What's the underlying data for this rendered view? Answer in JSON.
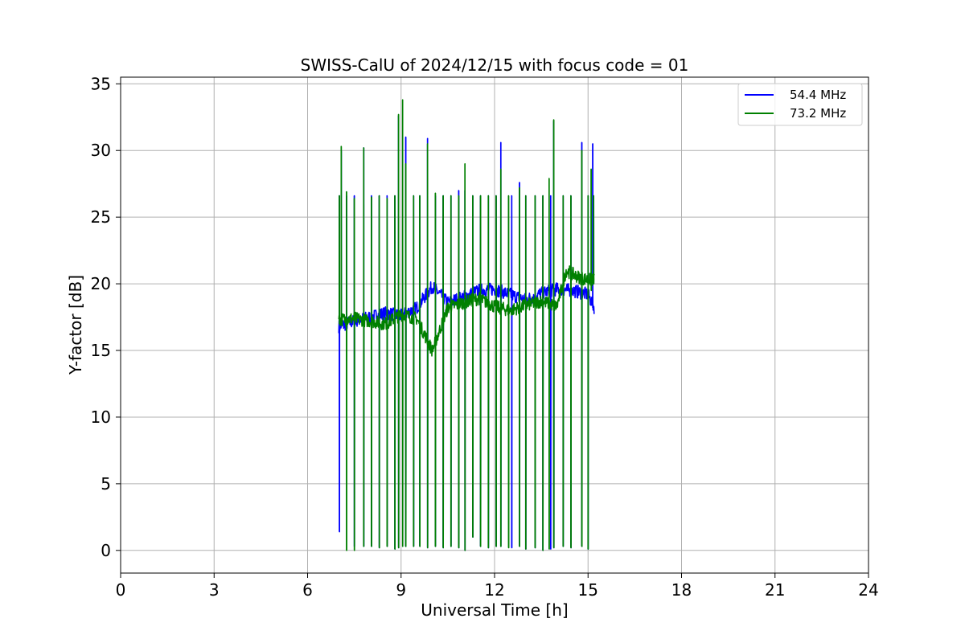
{
  "chart_data": {
    "type": "line",
    "title": "SWISS-CalU of 2024/12/15 with focus code = 01",
    "xlabel": "Universal Time [h]",
    "ylabel": "Y-factor [dB]",
    "xlim": [
      0,
      24
    ],
    "ylim": [
      -1.7,
      35.5
    ],
    "xticks": [
      0,
      3,
      6,
      9,
      12,
      15,
      18,
      21,
      24
    ],
    "yticks": [
      0,
      5,
      10,
      15,
      20,
      25,
      30,
      35
    ],
    "grid": true,
    "legend_position": "top-right",
    "series": [
      {
        "name": "54.4 MHz",
        "color": "#0000ff",
        "baseline": [
          [
            7.0,
            16.8
          ],
          [
            7.5,
            17.2
          ],
          [
            8.0,
            17.5
          ],
          [
            8.5,
            17.8
          ],
          [
            9.0,
            17.6
          ],
          [
            9.5,
            18.2
          ],
          [
            10.0,
            19.8
          ],
          [
            10.5,
            18.6
          ],
          [
            11.0,
            19.0
          ],
          [
            11.5,
            19.5
          ],
          [
            12.0,
            19.6
          ],
          [
            12.5,
            19.2
          ],
          [
            13.0,
            18.8
          ],
          [
            13.5,
            19.3
          ],
          [
            14.0,
            19.6
          ],
          [
            14.5,
            19.5
          ],
          [
            15.0,
            19.2
          ],
          [
            15.2,
            18.2
          ]
        ],
        "spikes": [
          [
            7.02,
            26.6,
            1.4
          ],
          [
            7.08,
            30.0,
            17.0
          ],
          [
            7.25,
            26.6,
            17.0
          ],
          [
            7.5,
            26.6,
            0.3
          ],
          [
            7.8,
            30.2,
            0.3
          ],
          [
            8.05,
            26.6,
            0.3
          ],
          [
            8.3,
            26.6,
            0.2
          ],
          [
            8.55,
            26.6,
            0.3
          ],
          [
            8.8,
            26.6,
            0.1
          ],
          [
            8.92,
            32.6,
            0.2
          ],
          [
            9.15,
            31.0,
            0.3
          ],
          [
            9.4,
            26.6,
            0.3
          ],
          [
            9.6,
            26.6,
            0.3
          ],
          [
            9.85,
            30.9,
            0.2
          ],
          [
            10.1,
            26.6,
            0.3
          ],
          [
            10.35,
            26.6,
            0.2
          ],
          [
            10.6,
            26.6,
            0.3
          ],
          [
            10.85,
            27.0,
            0.2
          ],
          [
            11.05,
            27.0,
            0.0
          ],
          [
            11.3,
            26.6,
            1.0
          ],
          [
            11.55,
            26.6,
            0.3
          ],
          [
            11.8,
            26.6,
            0.2
          ],
          [
            12.05,
            26.6,
            0.3
          ],
          [
            12.2,
            30.6,
            0.3
          ],
          [
            12.55,
            26.6,
            0.2
          ],
          [
            12.8,
            27.6,
            0.3
          ],
          [
            13.0,
            26.6,
            0.1
          ],
          [
            13.3,
            26.6,
            0.2
          ],
          [
            13.55,
            26.6,
            0.0
          ],
          [
            13.8,
            26.6,
            0.1
          ],
          [
            13.9,
            32.2,
            0.2
          ],
          [
            14.2,
            26.6,
            0.3
          ],
          [
            14.45,
            26.6,
            0.2
          ],
          [
            14.8,
            30.6,
            0.3
          ],
          [
            15.0,
            26.6,
            0.1
          ],
          [
            15.15,
            30.5,
            18.2
          ]
        ]
      },
      {
        "name": "73.2 MHz",
        "color": "#008000",
        "baseline": [
          [
            7.0,
            17.3
          ],
          [
            7.5,
            17.4
          ],
          [
            8.0,
            17.2
          ],
          [
            8.5,
            17.0
          ],
          [
            9.0,
            17.7
          ],
          [
            9.5,
            17.4
          ],
          [
            10.0,
            15.0
          ],
          [
            10.5,
            18.2
          ],
          [
            11.0,
            18.6
          ],
          [
            11.5,
            18.9
          ],
          [
            12.0,
            18.3
          ],
          [
            12.5,
            18.0
          ],
          [
            13.0,
            18.4
          ],
          [
            13.5,
            18.7
          ],
          [
            14.0,
            18.3
          ],
          [
            14.3,
            21.0
          ],
          [
            14.7,
            20.5
          ],
          [
            15.0,
            20.3
          ],
          [
            15.2,
            20.3
          ]
        ],
        "spikes": [
          [
            7.02,
            26.6,
            17.0
          ],
          [
            7.08,
            30.3,
            17.2
          ],
          [
            7.25,
            26.9,
            0.0
          ],
          [
            7.5,
            26.4,
            0.0
          ],
          [
            7.8,
            30.2,
            0.3
          ],
          [
            8.05,
            26.5,
            0.3
          ],
          [
            8.3,
            26.6,
            0.2
          ],
          [
            8.55,
            26.4,
            0.3
          ],
          [
            8.8,
            26.6,
            0.1
          ],
          [
            8.92,
            32.7,
            0.2
          ],
          [
            9.05,
            33.8,
            0.3
          ],
          [
            9.15,
            29.0,
            0.3
          ],
          [
            9.4,
            26.6,
            0.3
          ],
          [
            9.6,
            26.6,
            0.3
          ],
          [
            9.85,
            30.5,
            0.2
          ],
          [
            10.1,
            26.8,
            0.3
          ],
          [
            10.35,
            26.6,
            0.2
          ],
          [
            10.6,
            26.6,
            0.3
          ],
          [
            10.85,
            26.6,
            0.2
          ],
          [
            11.05,
            29.0,
            0.0
          ],
          [
            11.3,
            26.6,
            1.0
          ],
          [
            11.55,
            26.6,
            0.3
          ],
          [
            11.8,
            26.6,
            0.2
          ],
          [
            12.05,
            26.6,
            0.3
          ],
          [
            12.2,
            28.6,
            0.3
          ],
          [
            12.45,
            26.6,
            0.2
          ],
          [
            12.8,
            27.2,
            0.3
          ],
          [
            13.0,
            26.6,
            0.1
          ],
          [
            13.3,
            26.6,
            0.2
          ],
          [
            13.55,
            26.6,
            0.0
          ],
          [
            13.75,
            27.9,
            0.1
          ],
          [
            13.9,
            32.3,
            0.2
          ],
          [
            14.2,
            26.6,
            0.3
          ],
          [
            14.45,
            26.6,
            0.2
          ],
          [
            14.8,
            30.0,
            0.3
          ],
          [
            15.0,
            26.6,
            0.1
          ],
          [
            15.1,
            28.6,
            19.5
          ],
          [
            15.18,
            26.6,
            20.0
          ]
        ]
      }
    ]
  }
}
